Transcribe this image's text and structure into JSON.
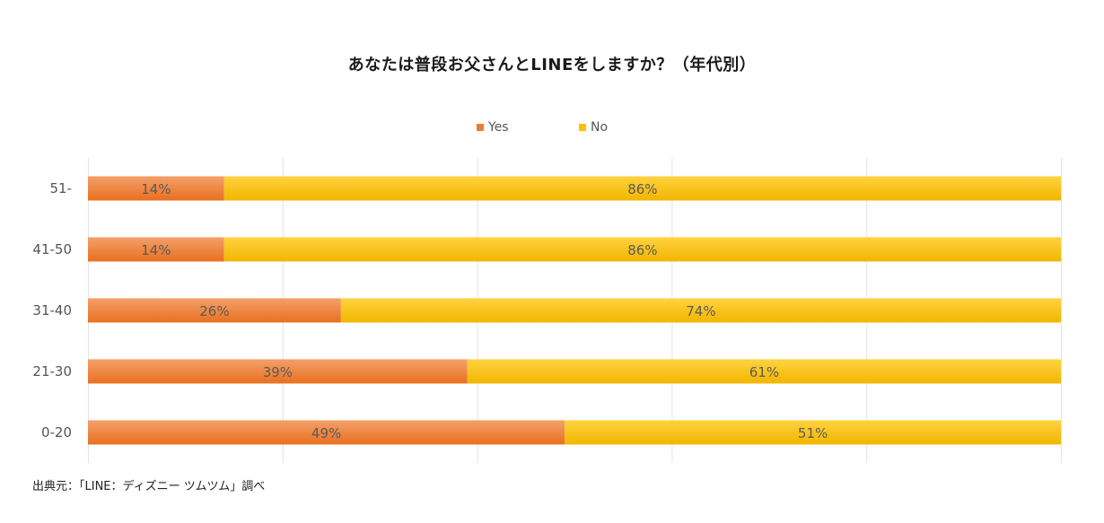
{
  "chart_data": {
    "type": "bar",
    "orientation": "horizontal",
    "stacked": true,
    "title": "あなたは普段お父さんとLINEをしますか？（年代別）",
    "categories": [
      "51-",
      "41-50",
      "31-40",
      "21-30",
      "0-20"
    ],
    "series": [
      {
        "name": "Yes",
        "values": [
          14,
          14,
          26,
          39,
          49
        ],
        "labels": [
          "14%",
          "14%",
          "26%",
          "39%",
          "49%"
        ],
        "color": "#ED7D31"
      },
      {
        "name": "No",
        "values": [
          86,
          86,
          74,
          61,
          51
        ],
        "labels": [
          "86%",
          "86%",
          "74%",
          "61%",
          "51%"
        ],
        "color": "#FFC000"
      }
    ],
    "xlim": [
      0,
      100
    ],
    "grid": true,
    "legend_position": "top"
  },
  "source": "出典元：「LINE：ディズニー ツムツム」調べ"
}
